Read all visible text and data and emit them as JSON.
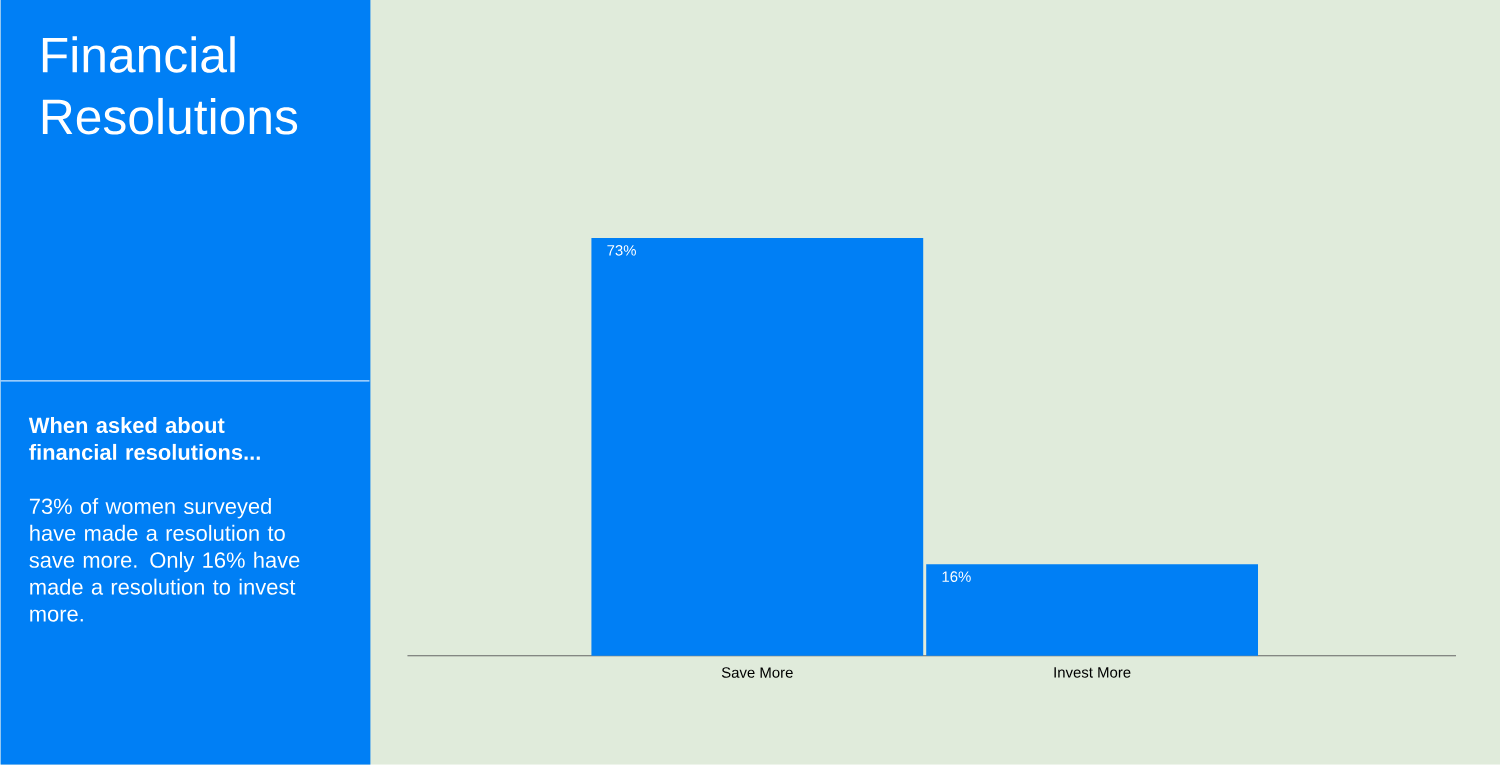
{
  "chart_data": {
    "type": "bar",
    "title": "Financial Resolutions",
    "subtitle": "When asked about financial resolutions...",
    "annotations": [
      "73% of women surveyed have made a resolution to save more. Only 16% have made a resolution to invest more."
    ],
    "categories": [
      "Save More",
      "Invest More"
    ],
    "values": [
      73,
      16
    ],
    "value_labels": [
      "73%",
      "16%"
    ],
    "color": "#007ff5"
  }
}
